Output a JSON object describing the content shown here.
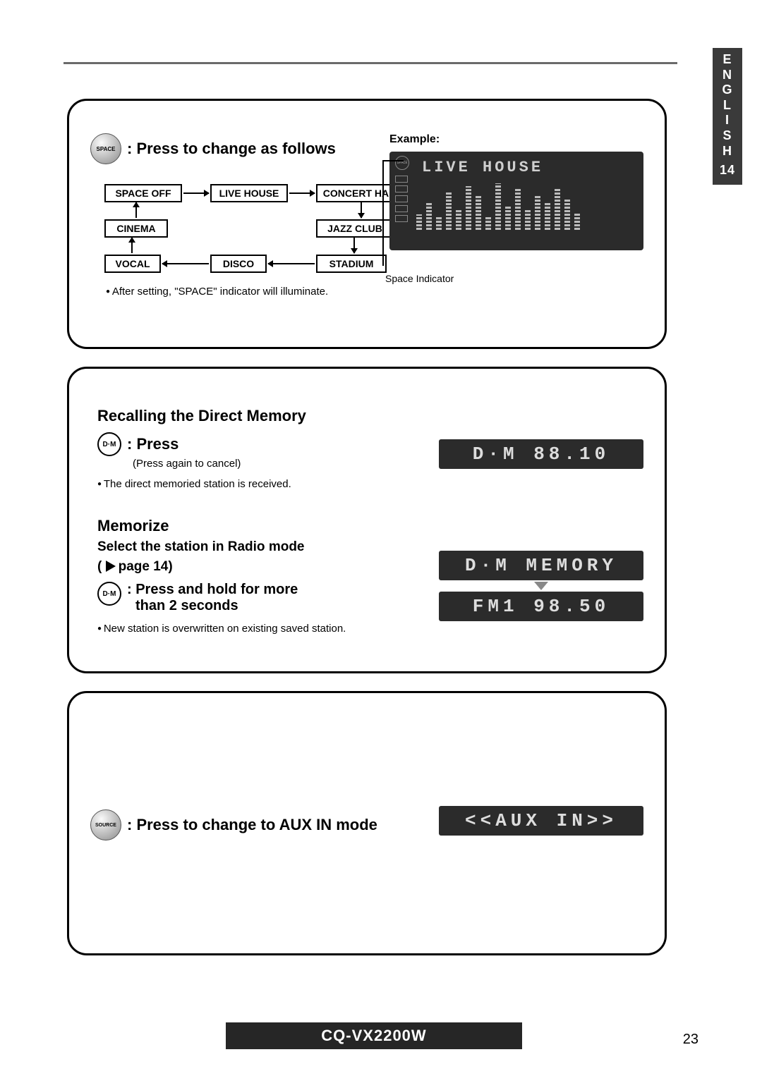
{
  "side_tab": {
    "letters": [
      "E",
      "N",
      "G",
      "L",
      "I",
      "S",
      "H"
    ],
    "num": "14"
  },
  "panel1": {
    "space_btn": "SPACE",
    "heading": ": Press to change as follows",
    "flow": {
      "space_off": "SPACE   OFF",
      "live_house": "LIVE HOUSE",
      "concert_hall": "CONCERT HALL",
      "cinema": "CINEMA",
      "jazz_club": "JAZZ CLUB",
      "vocal": "VOCAL",
      "disco": "DISCO",
      "stadium": "STADIUM"
    },
    "note": "After setting, \"SPACE\" indicator will illuminate.",
    "example_label": "Example:",
    "display_title": "LIVE HOUSE",
    "space_indicator_label": "Space Indicator",
    "eq_heights": [
      22,
      40,
      18,
      55,
      30,
      62,
      48,
      20,
      66,
      35,
      58,
      28,
      50,
      40,
      60,
      45,
      25
    ],
    "display_bg": "#2b2b2b",
    "display_fg": "#c7c7c7"
  },
  "panel2": {
    "recall_title": "Recalling the Direct Memory",
    "dm_btn": "D·M",
    "press": ": Press",
    "press_sub": "(Press again to cancel)",
    "recall_note": "The direct memoried station is received.",
    "memorize_title": "Memorize",
    "select_line1": "Select the station in Radio mode",
    "select_line2": "page 14)",
    "hold_line1": ": Press and hold for more",
    "hold_line2": "than 2 seconds",
    "memorize_note": "New station is overwritten on existing saved station.",
    "lcd_dm": "D·M   88.10",
    "lcd_mem": "D·M  MEMORY",
    "lcd_fm": "FM1   98.50"
  },
  "panel3": {
    "source_btn": "SOURCE",
    "heading": ": Press to change to AUX IN mode",
    "lcd": "<<AUX IN>>"
  },
  "footer": {
    "model": "CQ-VX2200W",
    "page": "23"
  },
  "colors": {
    "panel_border": "#000000",
    "lcd_bg": "#2b2b2b",
    "lcd_fg": "#dddddd"
  }
}
